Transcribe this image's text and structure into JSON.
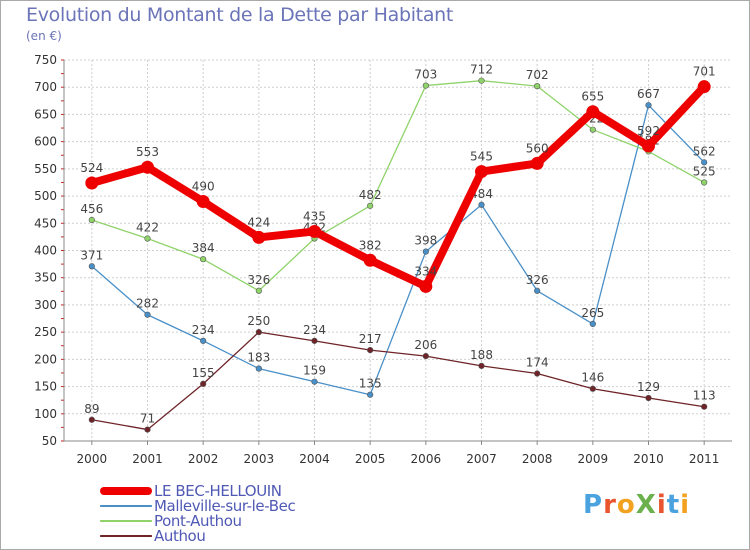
{
  "title": "Evolution du Montant de la Dette par Habitant",
  "subtitle": "(en €)",
  "logo": {
    "text": "ProXiti",
    "colors": [
      "#4aa3df",
      "#e8552e",
      "#f2a21f",
      "#6ab04c",
      "#e8552e",
      "#4aa3df",
      "#f2a21f"
    ]
  },
  "chart_data": {
    "type": "line",
    "x": [
      "2000",
      "2001",
      "2002",
      "2003",
      "2004",
      "2005",
      "2006",
      "2007",
      "2008",
      "2009",
      "2010",
      "2011"
    ],
    "yticks": [
      50,
      100,
      150,
      200,
      250,
      300,
      350,
      400,
      450,
      500,
      550,
      600,
      650,
      700,
      750
    ],
    "ylim": [
      50,
      750
    ],
    "grid": true,
    "legend_position": "bottom-left",
    "series": [
      {
        "name": "Malleville-sur-le-Bec",
        "color": "#4a90c8",
        "width": 1.3,
        "marker": 2.8,
        "start": 0,
        "values": [
          371,
          282,
          234,
          183,
          159,
          135,
          398,
          484,
          326,
          265,
          667,
          562
        ],
        "labels": [
          "371",
          "282",
          "234",
          "183",
          "159",
          "135",
          "398",
          "484",
          "326",
          "265",
          "667",
          "562"
        ]
      },
      {
        "name": "Pont-Authou",
        "color": "#8fd36a",
        "width": 1.3,
        "marker": 2.8,
        "start": 0,
        "values": [
          456,
          422,
          384,
          326,
          422,
          482,
          703,
          712,
          702,
          622,
          582,
          525
        ],
        "labels": [
          "456",
          "422",
          "384",
          "326",
          "422",
          "482",
          "703",
          "712",
          "702",
          "622",
          "582",
          "525"
        ]
      },
      {
        "name": "Authou",
        "color": "#6e2428",
        "width": 1.3,
        "marker": 2.8,
        "start": 0,
        "values": [
          89,
          71,
          155,
          250,
          234,
          217,
          206,
          188,
          174,
          146,
          129,
          113
        ],
        "labels": [
          "89",
          "71",
          "155",
          "250",
          "234",
          "217",
          "206",
          "188",
          "174",
          "146",
          "129",
          "113"
        ]
      },
      {
        "name": "LE BEC-HELLOUIN",
        "color": "#ee0000",
        "width": 8,
        "marker": 6.5,
        "start": 0,
        "values": [
          524,
          553,
          490,
          424,
          435,
          382,
          334,
          545,
          560,
          655,
          592,
          701
        ],
        "labels": [
          "524",
          "553",
          "490",
          "424",
          "435",
          "382",
          "334",
          "545",
          "560",
          "655",
          "592",
          "701"
        ]
      }
    ],
    "legend": [
      {
        "name": "LE BEC-HELLOUIN",
        "color": "#ee0000",
        "width": 8
      },
      {
        "name": "Malleville-sur-le-Bec",
        "color": "#4a90c8",
        "width": 1.5
      },
      {
        "name": "Pont-Authou",
        "color": "#8fd36a",
        "width": 1.5
      },
      {
        "name": "Authou",
        "color": "#6e2428",
        "width": 1.5
      }
    ]
  }
}
